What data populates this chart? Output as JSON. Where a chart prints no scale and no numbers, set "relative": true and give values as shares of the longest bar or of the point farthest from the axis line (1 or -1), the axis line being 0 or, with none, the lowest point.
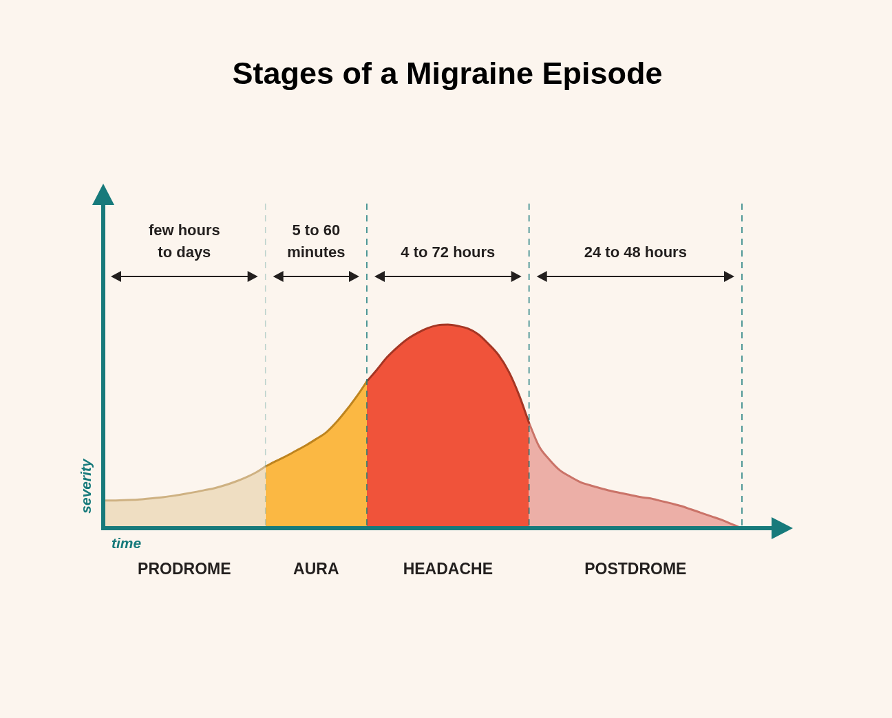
{
  "chart_data": {
    "type": "area",
    "title": "Stages of a Migraine Episode",
    "xlabel": "time",
    "ylabel": "severity",
    "relative": true,
    "grid": "x",
    "categories": [
      null,
      null,
      null,
      null,
      null,
      null,
      null,
      null,
      null,
      null,
      null,
      null,
      null,
      null,
      null,
      null,
      null,
      null,
      null,
      null,
      null,
      null,
      null,
      null,
      null,
      null,
      null,
      null,
      null,
      null,
      null,
      null,
      null,
      null,
      null,
      null,
      null,
      null,
      null,
      null,
      null,
      null,
      null,
      null,
      null,
      null,
      null,
      null,
      null,
      null,
      null,
      null,
      null,
      null,
      null,
      null,
      null,
      null,
      null,
      null,
      null,
      null,
      null,
      null
    ],
    "series": [
      {
        "name": "PRODROME",
        "color": "#efdec2",
        "values": [
          0.136,
          0.136,
          0.138,
          0.139,
          0.143,
          0.148,
          0.153,
          0.16,
          0.168,
          0.177,
          0.187,
          0.197,
          0.211,
          0.228,
          0.248,
          0.272,
          0.303,
          null,
          null,
          null,
          null,
          null,
          null,
          null,
          null,
          null,
          null,
          null,
          null,
          null,
          null,
          null,
          null,
          null,
          null,
          null,
          null,
          null,
          null,
          null,
          null,
          null,
          null,
          null,
          null,
          null,
          null,
          null,
          null,
          null,
          null,
          null,
          null,
          null,
          null,
          null,
          null,
          null,
          null,
          null,
          null,
          null,
          null,
          null
        ]
      },
      {
        "name": "AURA",
        "color": "#fbb843",
        "values": [
          null,
          null,
          null,
          null,
          null,
          null,
          null,
          null,
          null,
          null,
          null,
          null,
          null,
          null,
          null,
          null,
          0.303,
          0.329,
          0.353,
          0.38,
          0.407,
          0.438,
          0.471,
          0.521,
          0.581,
          0.647,
          0.721,
          null,
          null,
          null,
          null,
          null,
          null,
          null,
          null,
          null,
          null,
          null,
          null,
          null,
          null,
          null,
          null,
          null,
          null,
          null,
          null,
          null,
          null,
          null,
          null,
          null,
          null,
          null,
          null,
          null,
          null,
          null,
          null,
          null,
          null,
          null,
          null,
          null
        ]
      },
      {
        "name": "HEADACHE",
        "color": "#f0533a",
        "values": [
          null,
          null,
          null,
          null,
          null,
          null,
          null,
          null,
          null,
          null,
          null,
          null,
          null,
          null,
          null,
          null,
          null,
          null,
          null,
          null,
          null,
          null,
          null,
          null,
          null,
          null,
          0.721,
          0.779,
          0.84,
          0.888,
          0.929,
          0.959,
          0.983,
          0.997,
          1,
          0.993,
          0.98,
          0.952,
          0.905,
          0.85,
          0.769,
          0.656,
          0.517,
          null,
          null,
          null,
          null,
          null,
          null,
          null,
          null,
          null,
          null,
          null,
          null,
          null,
          null,
          null,
          null,
          null,
          null,
          null,
          null,
          null
        ]
      },
      {
        "name": "POSTDROME",
        "color": "#ecafa7",
        "values": [
          null,
          null,
          null,
          null,
          null,
          null,
          null,
          null,
          null,
          null,
          null,
          null,
          null,
          null,
          null,
          null,
          null,
          null,
          null,
          null,
          null,
          null,
          null,
          null,
          null,
          null,
          null,
          null,
          null,
          null,
          null,
          null,
          null,
          null,
          null,
          null,
          null,
          null,
          null,
          null,
          null,
          null,
          0.517,
          0.401,
          0.337,
          0.286,
          0.255,
          0.228,
          0.211,
          0.197,
          0.184,
          0.173,
          0.163,
          0.153,
          0.146,
          0.134,
          0.122,
          0.109,
          0.092,
          0.075,
          0.058,
          0.041,
          0.02,
          0
        ]
      }
    ],
    "annotations": [
      "few hours to days",
      "5 to 60 minutes",
      "4 to 72 hours",
      "24 to 48 hours"
    ]
  }
}
